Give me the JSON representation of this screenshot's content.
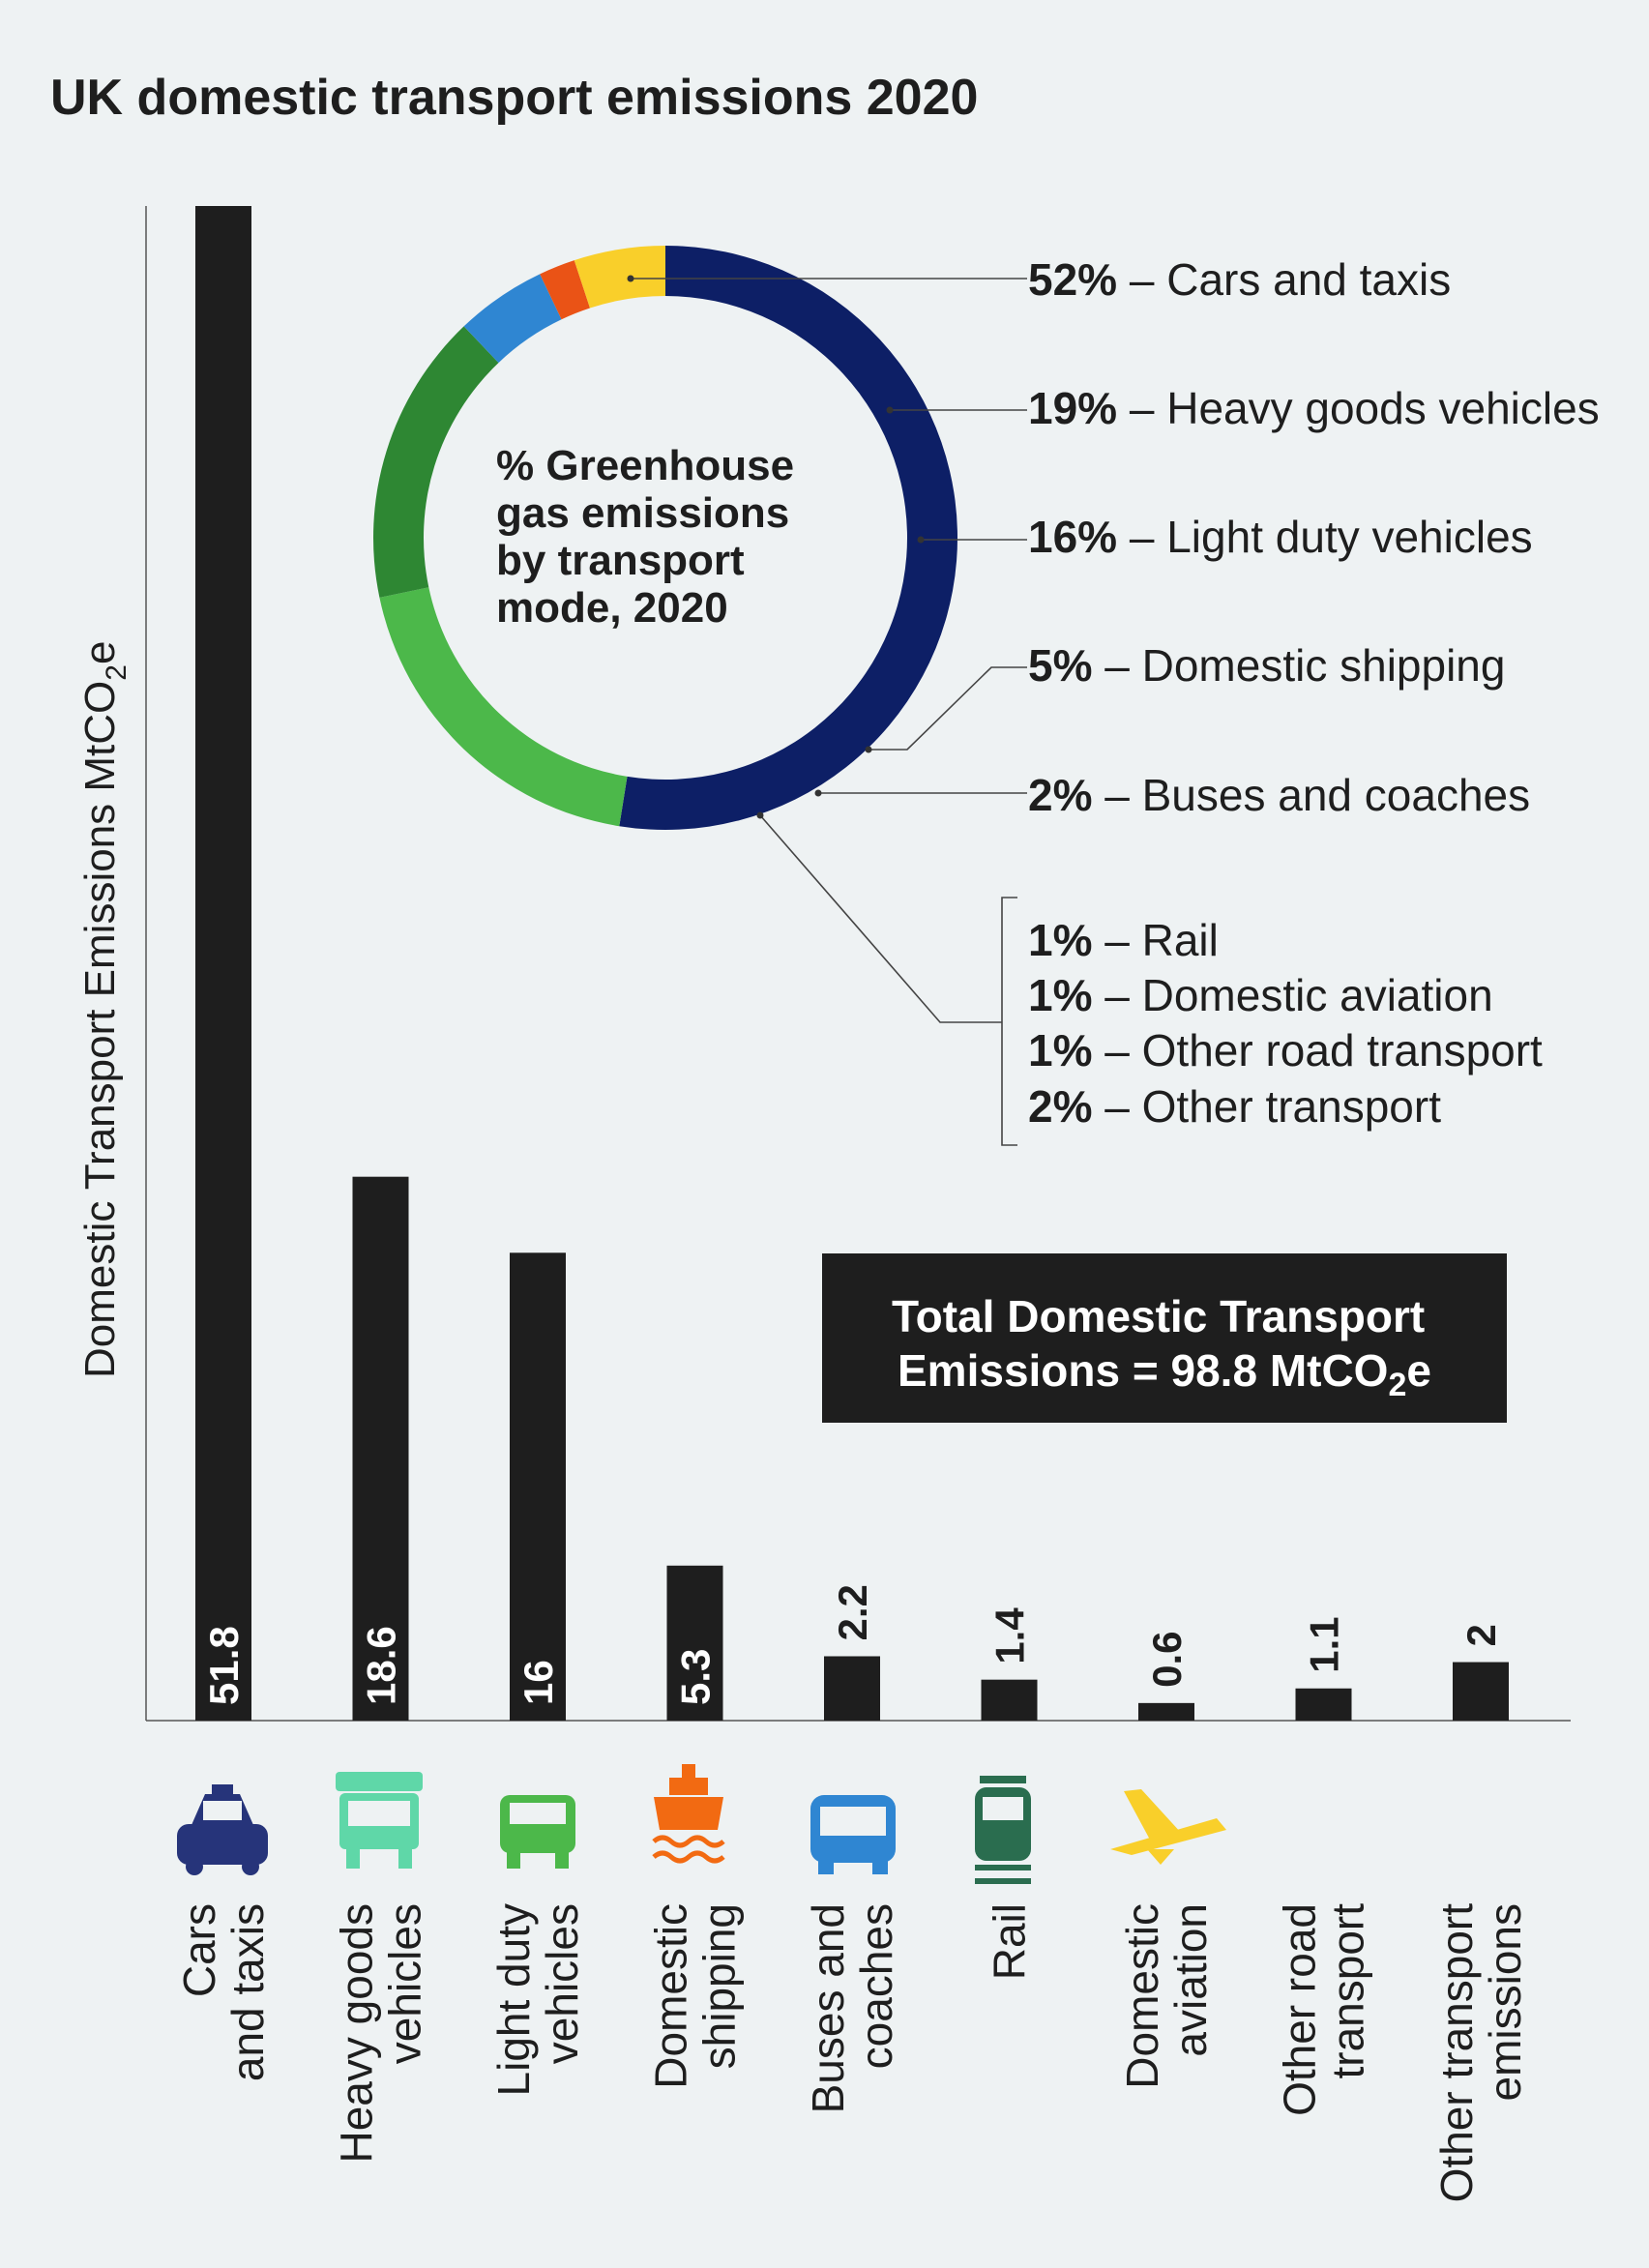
{
  "title": "UK domestic transport emissions 2020",
  "colors": {
    "background": "#eef2f3",
    "bar": "#1e1e1e",
    "cars": "#0d1f66",
    "hgv": "#4cb84a",
    "ldv": "#2e8733",
    "shipping": "#2f86d2",
    "buses": "#ea5316",
    "other_yellow": "#f9cf2a"
  },
  "chart_data": [
    {
      "type": "bar",
      "ylabel_main": "Domestic Transport Emissions MtCO",
      "ylabel_sub": "2",
      "ylabel_tail": "e",
      "categories": [
        [
          "Cars",
          "and taxis"
        ],
        [
          "Heavy goods",
          "vehicles"
        ],
        [
          "Light duty",
          "vehicles"
        ],
        [
          "Domestic",
          "shipping"
        ],
        [
          "Buses and",
          "coaches"
        ],
        [
          "Rail"
        ],
        [
          "Domestic",
          "aviation"
        ],
        [
          "Other road",
          "transport"
        ],
        [
          "Other transport",
          "emissions"
        ]
      ],
      "icons": [
        "car-icon",
        "truck-icon",
        "van-icon",
        "ship-icon",
        "bus-icon",
        "train-icon",
        "plane-icon",
        "",
        ""
      ],
      "values": [
        51.8,
        18.6,
        16,
        5.3,
        2.2,
        1.4,
        0.6,
        1.1,
        2
      ],
      "labels": [
        "51.8",
        "18.6",
        "16",
        "5.3",
        "2.2",
        "1.4",
        "0.6",
        "1.1",
        "2"
      ],
      "ylim": [
        0,
        51.8
      ],
      "total_box": {
        "line1": "Total Domestic Transport",
        "line2_a": "Emissions  = 98.8 MtCO",
        "line2_sub": "2",
        "line2_b": "e"
      }
    },
    {
      "type": "pie",
      "center_text": [
        "% Greenhouse",
        "gas emissions",
        "by transport",
        "mode, 2020"
      ],
      "slices": [
        {
          "name": "Cars and taxis",
          "value": 52,
          "color": "#0d1f66"
        },
        {
          "name": "Heavy goods vehicles",
          "value": 19,
          "color": "#4cb84a"
        },
        {
          "name": "Light duty vehicles",
          "value": 16,
          "color": "#2e8733"
        },
        {
          "name": "Domestic shipping",
          "value": 5,
          "color": "#2f86d2"
        },
        {
          "name": "Buses and coaches",
          "value": 2,
          "color": "#ea5316"
        },
        {
          "name": "Other (rail, aviation, other road, other transport)",
          "value": 5,
          "color": "#f9cf2a"
        }
      ],
      "legend": [
        {
          "pct": "52%",
          "text": " – Cars and taxis"
        },
        {
          "pct": "19%",
          "text": " – Heavy goods vehicles"
        },
        {
          "pct": "16%",
          "text": " – Light duty vehicles"
        },
        {
          "pct": "5%",
          "text": " – Domestic shipping"
        },
        {
          "pct": "2%",
          "text": " – Buses and coaches"
        }
      ],
      "legend_group": [
        {
          "pct": "1%",
          "text": " – Rail"
        },
        {
          "pct": "1%",
          "text": " – Domestic aviation"
        },
        {
          "pct": "1%",
          "text": " – Other road transport"
        },
        {
          "pct": "2%",
          "text": " – Other transport"
        }
      ]
    }
  ]
}
